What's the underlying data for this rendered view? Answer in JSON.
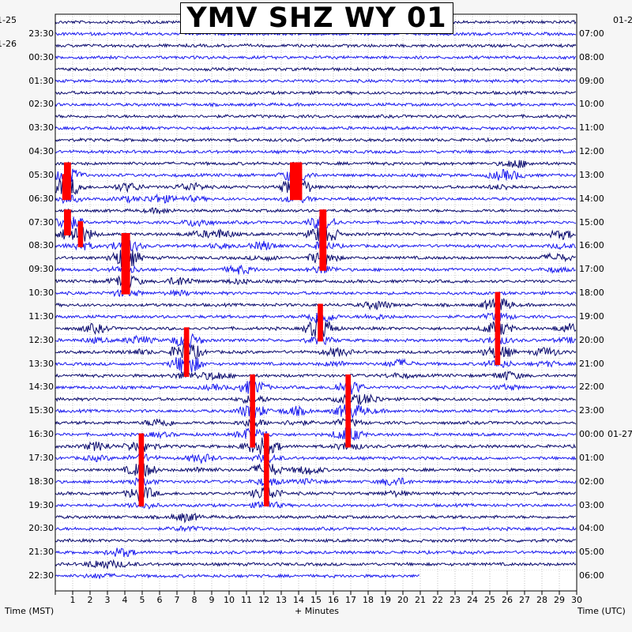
{
  "chart_data": {
    "type": "seismogram",
    "title": "YMV SHZ WY 01",
    "xlabel": "+ Minutes",
    "left_axis_title": "Time (MST)",
    "right_axis_title": "Time (UTC)",
    "xlim": [
      0,
      30
    ],
    "x_ticks": [
      "1",
      "2",
      "3",
      "4",
      "5",
      "6",
      "7",
      "8",
      "9",
      "10",
      "11",
      "12",
      "13",
      "14",
      "15",
      "16",
      "17",
      "18",
      "19",
      "20",
      "21",
      "22",
      "23",
      "24",
      "25",
      "26",
      "27",
      "28",
      "29",
      "30"
    ],
    "left_date_labels": [
      "1-25",
      "1-26"
    ],
    "right_date_labels": [
      "01-2",
      "01-27"
    ],
    "left_time_labels": [
      "23:30",
      "00:30",
      "01:30",
      "02:30",
      "03:30",
      "04:30",
      "05:30",
      "06:30",
      "07:30",
      "08:30",
      "09:30",
      "10:30",
      "11:30",
      "12:30",
      "13:30",
      "14:30",
      "15:30",
      "16:30",
      "17:30",
      "18:30",
      "19:30",
      "20:30",
      "21:30",
      "22:30"
    ],
    "right_time_labels": [
      "07:00",
      "08:00",
      "09:00",
      "10:00",
      "11:00",
      "12:00",
      "13:00",
      "14:00",
      "15:00",
      "16:00",
      "17:00",
      "18:00",
      "19:00",
      "20:00",
      "21:00",
      "22:00",
      "23:00",
      "00:00",
      "01:00",
      "02:00",
      "03:00",
      "04:00",
      "05:00",
      "06:00"
    ],
    "trace_colors": [
      "#0a0a6e",
      "#1a1aee"
    ],
    "clip_color": "#ff0000",
    "trace_count": 48,
    "last_trace_end_minute": 21,
    "clipped_events": [
      {
        "trace": 13,
        "start": 0.5,
        "end": 0.9
      },
      {
        "trace": 14,
        "start": 0.4,
        "end": 0.9
      },
      {
        "trace": 17,
        "start": 0.5,
        "end": 0.9
      },
      {
        "trace": 18,
        "start": 1.3,
        "end": 1.6
      },
      {
        "trace": 19,
        "start": 3.8,
        "end": 4.3
      },
      {
        "trace": 20,
        "start": 3.8,
        "end": 4.3
      },
      {
        "trace": 22,
        "start": 3.8,
        "end": 4.3
      },
      {
        "trace": 13,
        "start": 13.5,
        "end": 14.2
      },
      {
        "trace": 14,
        "start": 13.5,
        "end": 14.2
      },
      {
        "trace": 17,
        "start": 15.2,
        "end": 15.6
      },
      {
        "trace": 18,
        "start": 15.2,
        "end": 15.6
      },
      {
        "trace": 20,
        "start": 15.2,
        "end": 15.6
      },
      {
        "trace": 27,
        "start": 7.4,
        "end": 7.7
      },
      {
        "trace": 28,
        "start": 7.4,
        "end": 7.7
      },
      {
        "trace": 29,
        "start": 7.4,
        "end": 7.7
      },
      {
        "trace": 25,
        "start": 15.1,
        "end": 15.4
      },
      {
        "trace": 26,
        "start": 15.1,
        "end": 15.4
      },
      {
        "trace": 31,
        "start": 11.2,
        "end": 11.5
      },
      {
        "trace": 33,
        "start": 11.2,
        "end": 11.5
      },
      {
        "trace": 35,
        "start": 11.2,
        "end": 11.5
      },
      {
        "trace": 31,
        "start": 16.7,
        "end": 17.0
      },
      {
        "trace": 33,
        "start": 16.7,
        "end": 17.0
      },
      {
        "trace": 35,
        "start": 16.7,
        "end": 17.0
      },
      {
        "trace": 24,
        "start": 25.3,
        "end": 25.6
      },
      {
        "trace": 26,
        "start": 25.3,
        "end": 25.6
      },
      {
        "trace": 28,
        "start": 25.3,
        "end": 25.6
      },
      {
        "trace": 36,
        "start": 4.8,
        "end": 5.1
      },
      {
        "trace": 38,
        "start": 4.8,
        "end": 5.1
      },
      {
        "trace": 40,
        "start": 4.8,
        "end": 5.1
      },
      {
        "trace": 36,
        "start": 12.0,
        "end": 12.3
      },
      {
        "trace": 38,
        "start": 12.0,
        "end": 12.3
      },
      {
        "trace": 40,
        "start": 12.0,
        "end": 12.3
      }
    ]
  }
}
